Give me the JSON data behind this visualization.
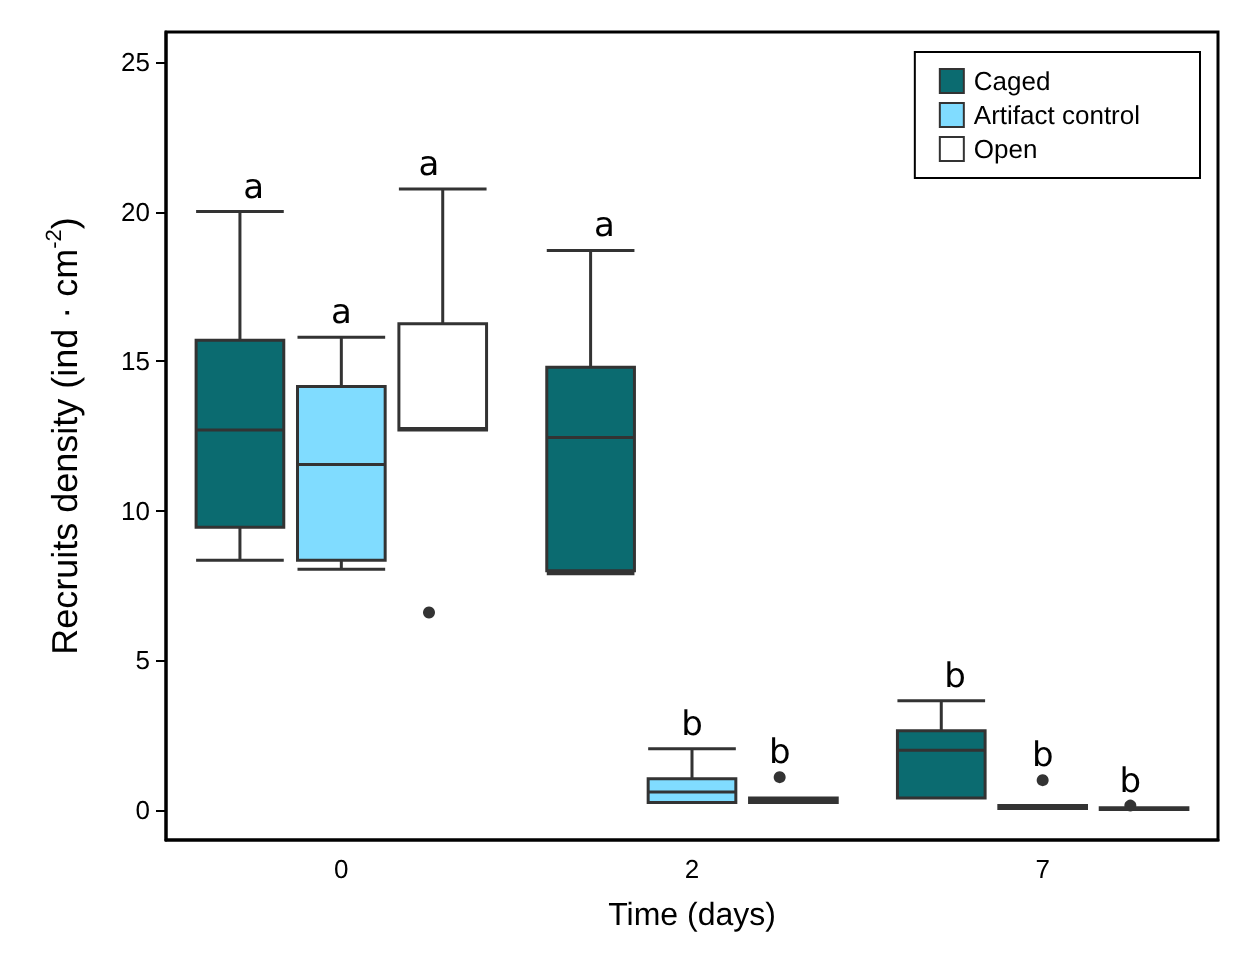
{
  "chart_data": {
    "type": "box",
    "xlabel": "Time (days)",
    "ylabel": "Recruits density (ind · cm$^{-2}$)",
    "categories": [
      "0",
      "2",
      "7"
    ],
    "series": [
      {
        "name": "Caged",
        "color": "#0b6b70",
        "boxes": [
          {
            "low": 8.35,
            "q1": 9.45,
            "median": 12.7,
            "q3": 15.7,
            "high": 20.0
          },
          {
            "low": 7.9,
            "q1": 8.0,
            "median": 12.45,
            "q3": 14.8,
            "high": 18.7
          },
          {
            "low": 0.4,
            "q1": 0.4,
            "median": 2.0,
            "q3": 2.65,
            "high": 3.65
          }
        ]
      },
      {
        "name": "Artifact control",
        "color": "#80dcff",
        "boxes": [
          {
            "low": 8.05,
            "q1": 8.35,
            "median": 11.55,
            "q3": 14.15,
            "high": 15.8
          },
          {
            "low": 0.25,
            "q1": 0.25,
            "median": 0.6,
            "q3": 1.05,
            "high": 2.05
          },
          {
            "low": 0.05,
            "q1": 0.05,
            "median": 0.1,
            "q3": 0.15,
            "high": 0.15,
            "outliers": [
              1.0
            ]
          }
        ]
      },
      {
        "name": "Open",
        "color": "#ffffff",
        "boxes": [
          {
            "low": 12.7,
            "q1": 12.7,
            "median": 12.75,
            "q3": 16.25,
            "high": 20.75,
            "outliers": [
              6.6
            ]
          },
          {
            "low": 0.25,
            "q1": 0.25,
            "median": 0.35,
            "q3": 0.4,
            "high": 0.4,
            "outliers": [
              1.1
            ]
          },
          {
            "low": 0.02,
            "q1": 0.02,
            "median": 0.05,
            "q3": 0.08,
            "high": 0.08,
            "outliers": [
              0.15
            ]
          }
        ]
      }
    ],
    "annotations": [
      "a",
      "a",
      "a",
      "a",
      "b",
      "b",
      "b",
      "b",
      "b"
    ],
    "ylim": [
      -1,
      26
    ],
    "yticks": [
      0,
      5,
      10,
      15,
      20,
      25
    ],
    "grid": false,
    "legend": "top right"
  }
}
